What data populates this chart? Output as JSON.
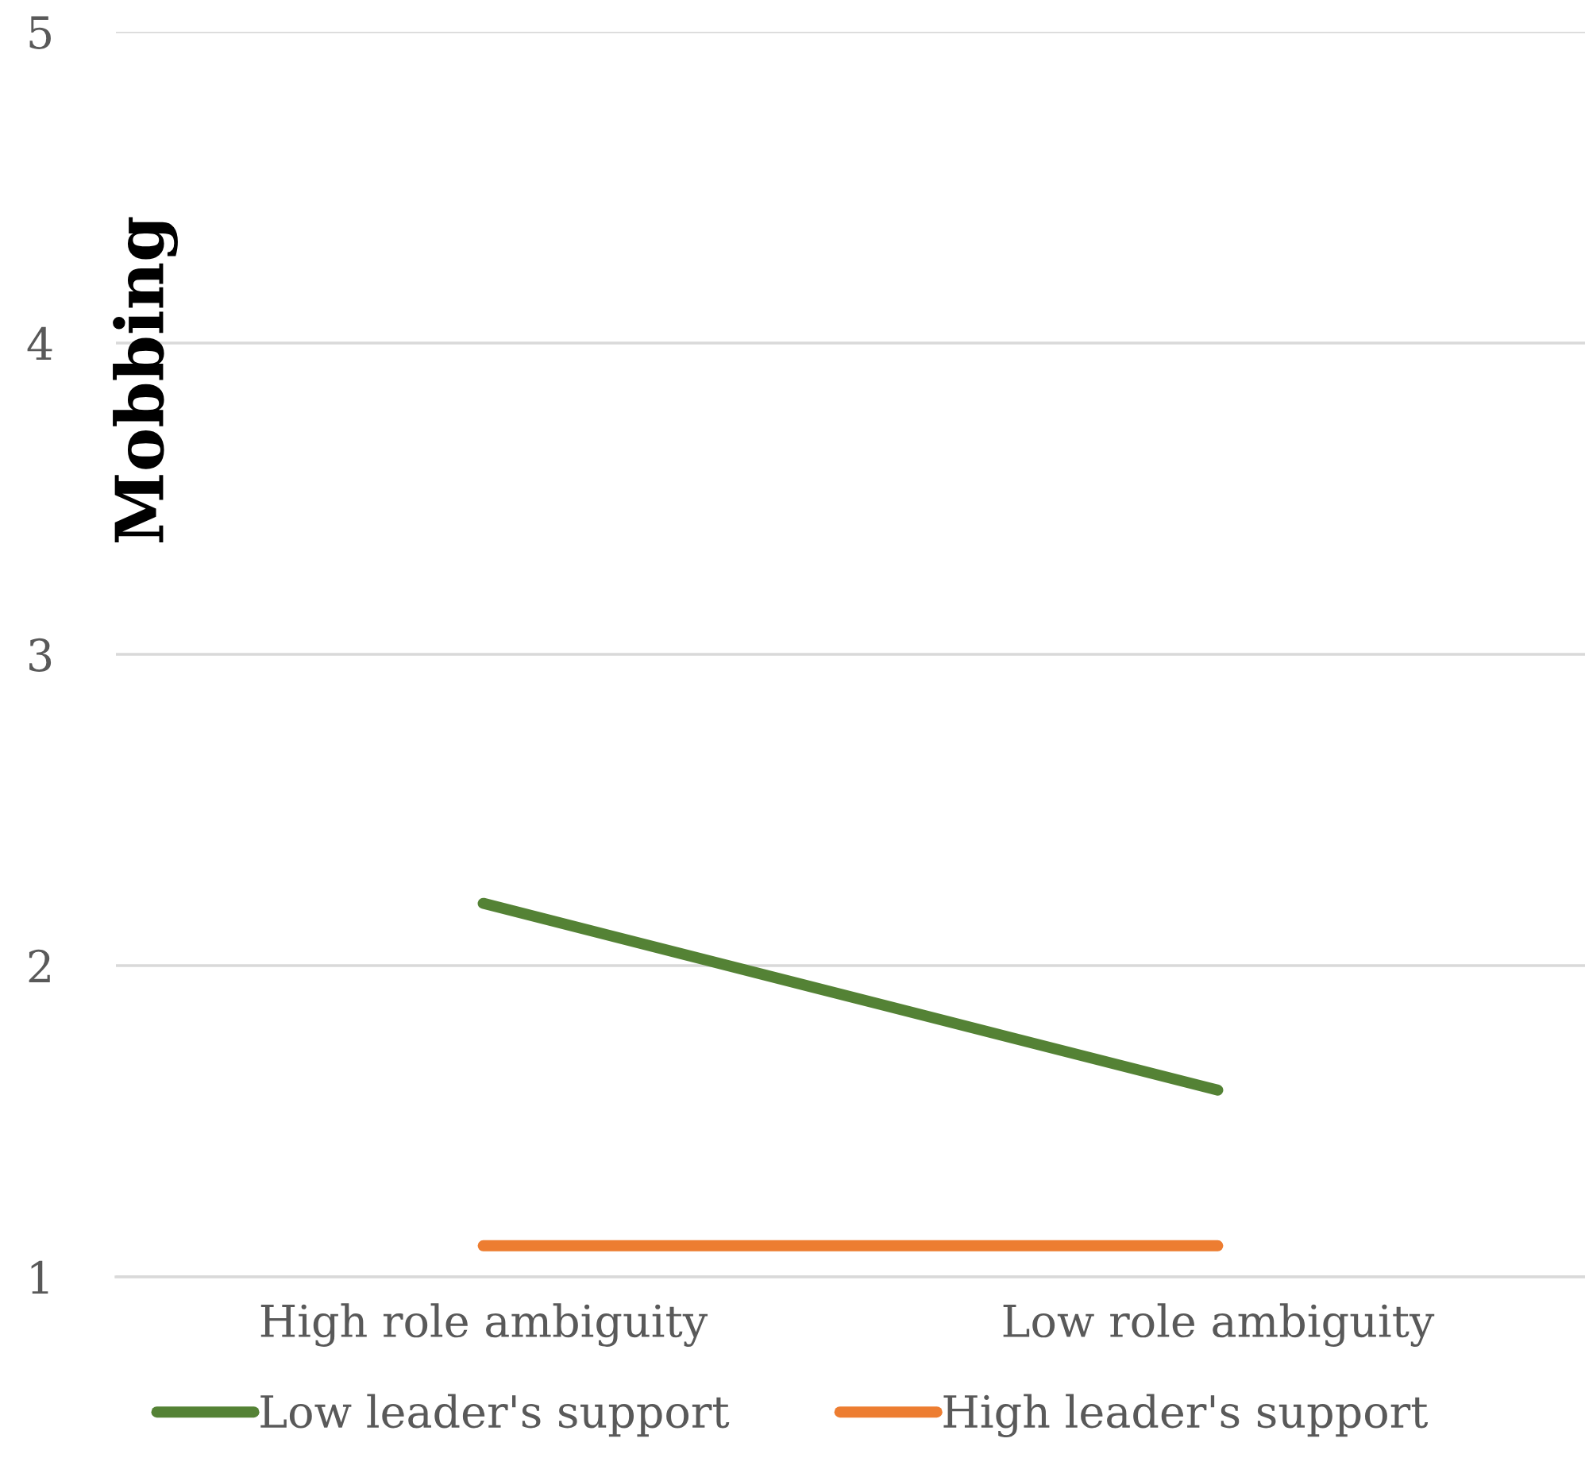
{
  "chart_data": {
    "type": "line",
    "ylabel": "Mobbing",
    "categories": [
      "High role ambiguity",
      "Low role ambiguity"
    ],
    "series": [
      {
        "name": "Low leader's support",
        "color": "#548235",
        "values": [
          2.2,
          1.6
        ]
      },
      {
        "name": "High leader's support",
        "color": "#ed7d31",
        "values": [
          1.1,
          1.1
        ]
      }
    ],
    "ylim": [
      1,
      5
    ],
    "yticks": [
      1,
      2,
      3,
      4,
      5
    ],
    "grid": "y",
    "legend": "bottom",
    "marker": "none",
    "line_style": "solid"
  }
}
